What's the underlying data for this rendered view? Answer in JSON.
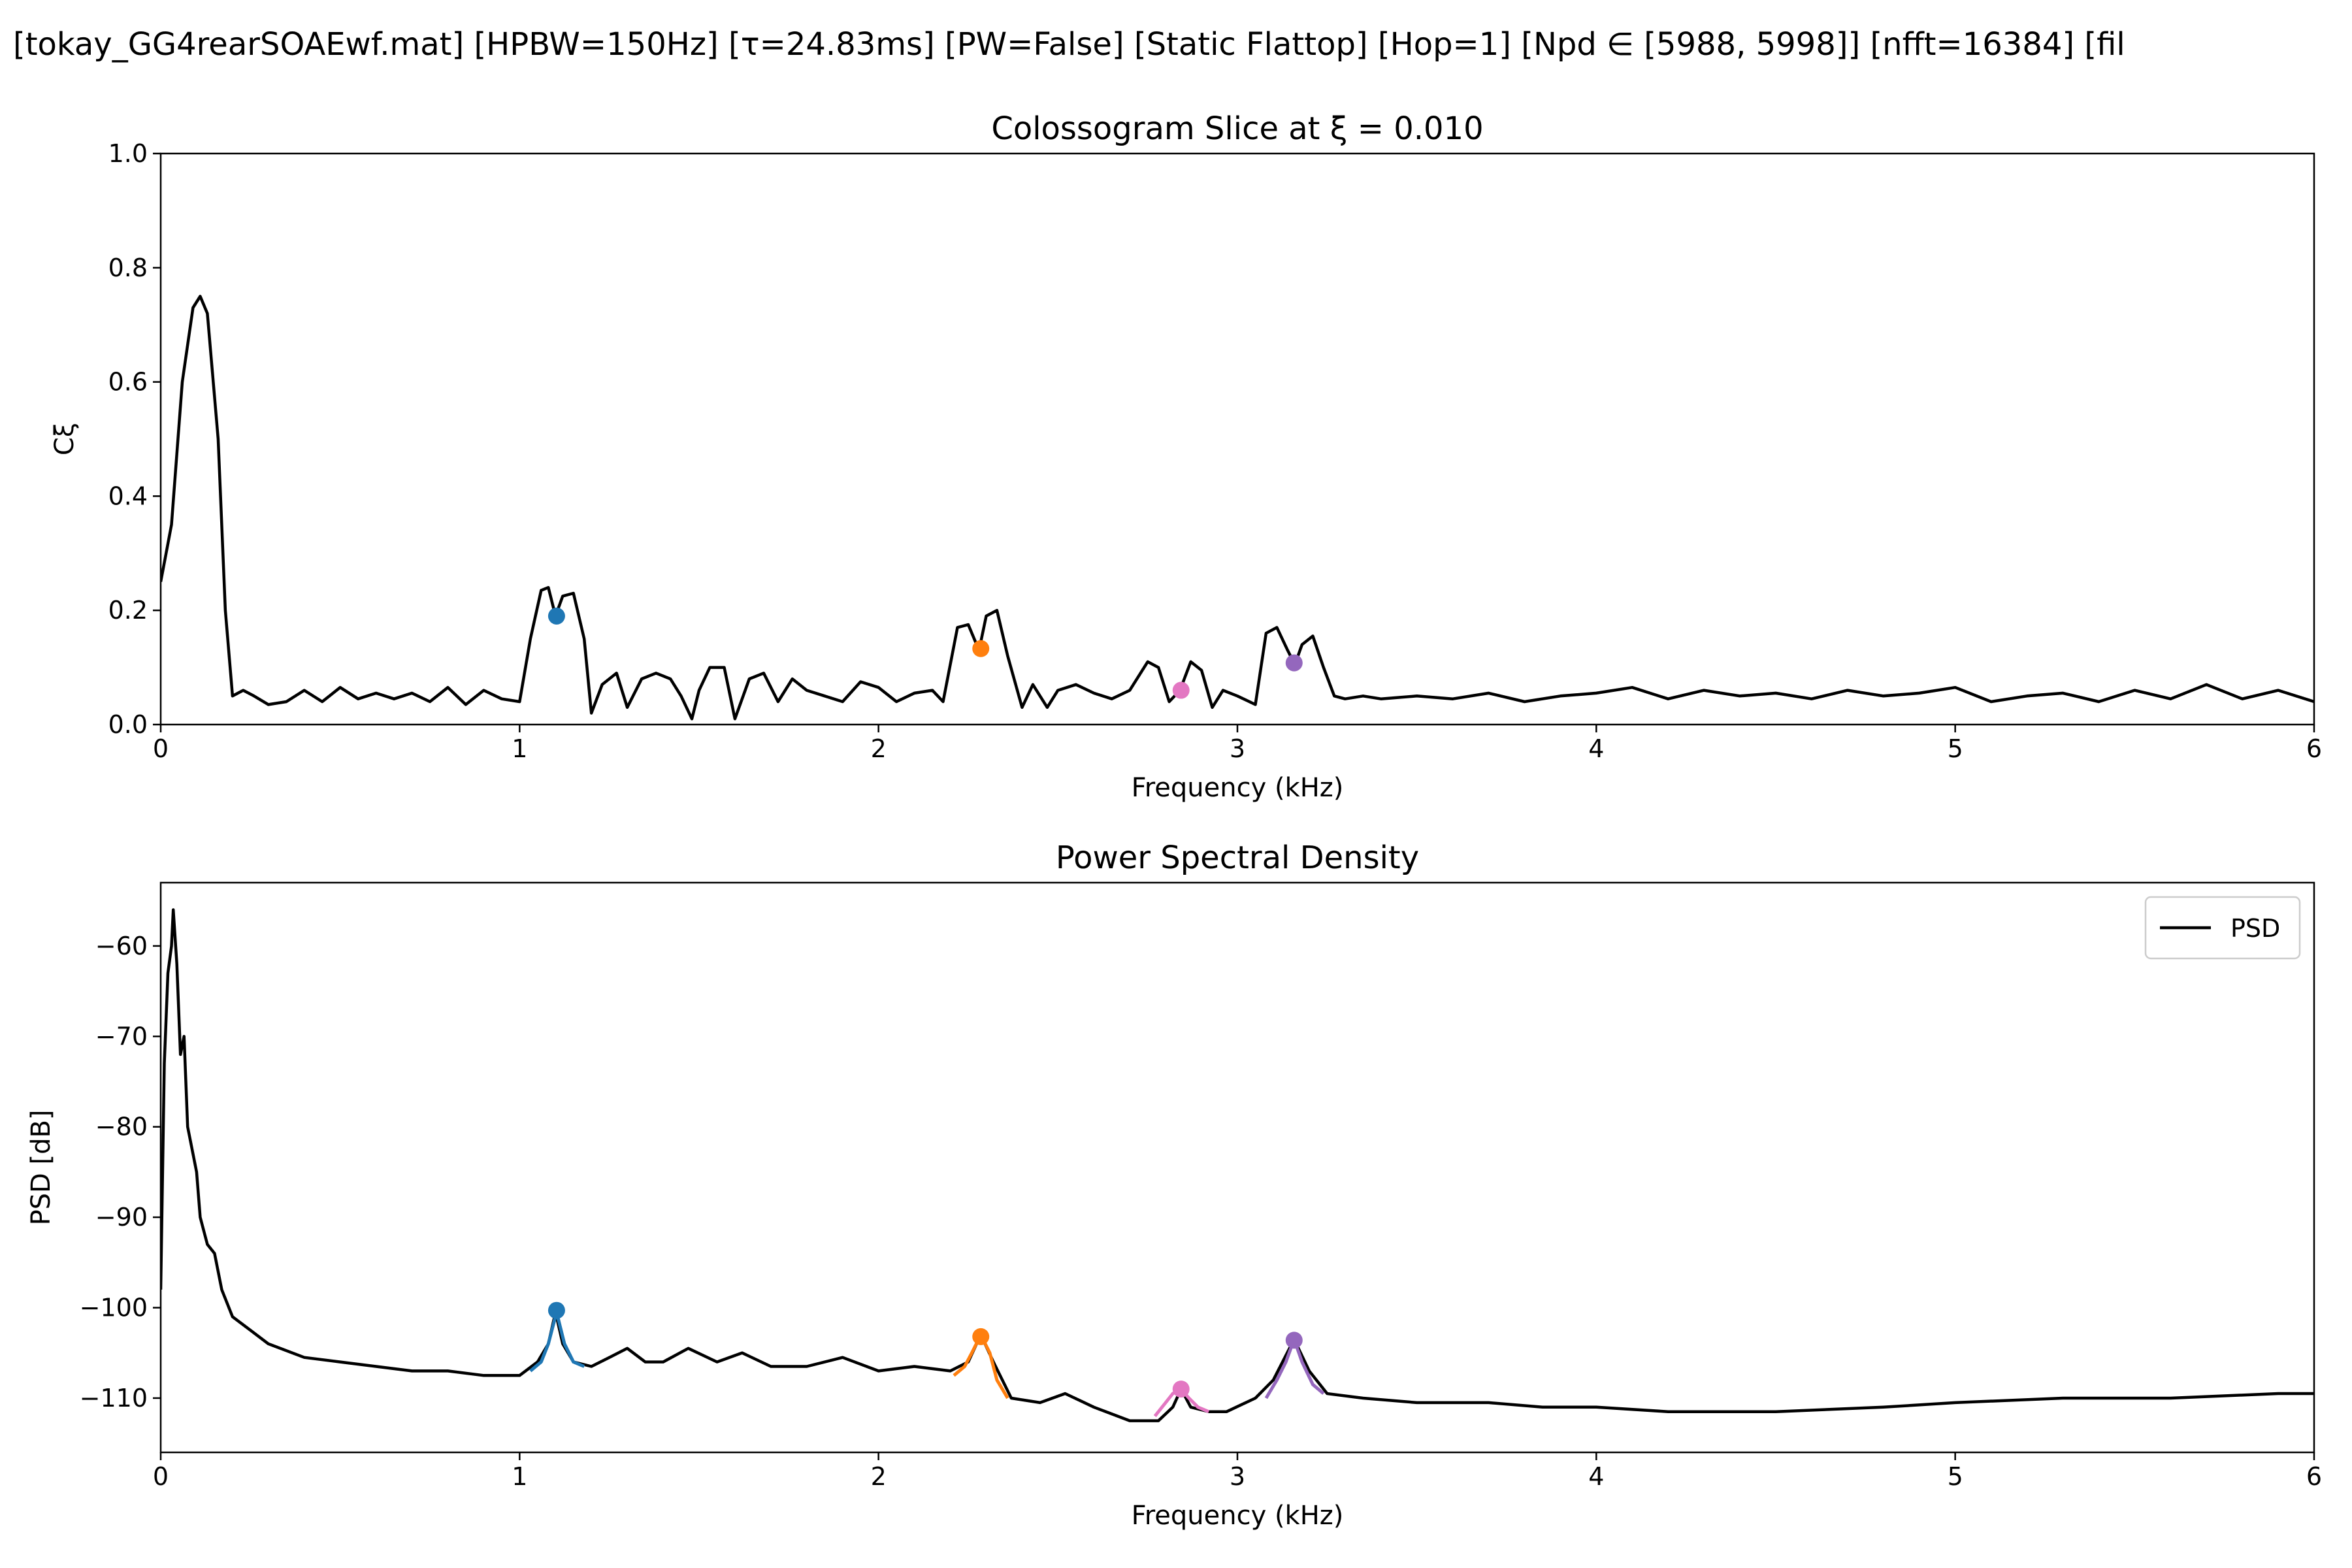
{
  "figure": {
    "suptitle": "[tokay_GG4rearSOAEwf.mat]   [HPBW=150Hz]   [τ=24.83ms]   [PW=False]   [Static Flattop]   [Hop=1]   [Npd ∈ [5988, 5998]]   [nfft=16384]   [fil"
  },
  "chart_data": [
    {
      "type": "line",
      "title": "Colossogram Slice at ξ = 0.010",
      "xlabel": "Frequency (kHz)",
      "ylabel": "Cξ",
      "xlim": [
        0,
        6
      ],
      "ylim": [
        0,
        1
      ],
      "xticks": [
        0,
        1,
        2,
        3,
        4,
        5,
        6
      ],
      "xtick_labels": [
        "0",
        "1",
        "2",
        "3",
        "4",
        "5",
        "6"
      ],
      "yticks": [
        0,
        0.2,
        0.4,
        0.6,
        0.8,
        1.0
      ],
      "ytick_labels": [
        "0.0",
        "0.2",
        "0.4",
        "0.6",
        "0.8",
        "1.0"
      ],
      "grid": false,
      "series": [
        {
          "color": "#000000",
          "x": [
            0,
            0.03,
            0.06,
            0.09,
            0.11,
            0.13,
            0.16,
            0.18,
            0.2,
            0.23,
            0.26,
            0.3,
            0.35,
            0.4,
            0.45,
            0.5,
            0.55,
            0.6,
            0.65,
            0.7,
            0.75,
            0.8,
            0.85,
            0.9,
            0.95,
            1.0,
            1.03,
            1.06,
            1.08,
            1.1,
            1.12,
            1.15,
            1.18,
            1.2,
            1.23,
            1.27,
            1.3,
            1.34,
            1.38,
            1.42,
            1.45,
            1.48,
            1.5,
            1.53,
            1.57,
            1.6,
            1.64,
            1.68,
            1.72,
            1.76,
            1.8,
            1.85,
            1.9,
            1.95,
            2.0,
            2.05,
            2.1,
            2.15,
            2.18,
            2.22,
            2.25,
            2.28,
            2.3,
            2.33,
            2.36,
            2.4,
            2.43,
            2.47,
            2.5,
            2.55,
            2.6,
            2.65,
            2.7,
            2.75,
            2.78,
            2.81,
            2.84,
            2.87,
            2.9,
            2.93,
            2.96,
            3.0,
            3.05,
            3.08,
            3.11,
            3.14,
            3.16,
            3.18,
            3.21,
            3.24,
            3.27,
            3.3,
            3.35,
            3.4,
            3.5,
            3.6,
            3.7,
            3.8,
            3.9,
            4.0,
            4.1,
            4.2,
            4.3,
            4.4,
            4.5,
            4.6,
            4.7,
            4.8,
            4.9,
            5.0,
            5.1,
            5.2,
            5.3,
            5.4,
            5.5,
            5.6,
            5.7,
            5.8,
            5.9,
            6.0
          ],
          "y": [
            0.25,
            0.35,
            0.6,
            0.73,
            0.75,
            0.72,
            0.5,
            0.2,
            0.05,
            0.06,
            0.05,
            0.035,
            0.04,
            0.06,
            0.04,
            0.065,
            0.045,
            0.055,
            0.045,
            0.055,
            0.04,
            0.065,
            0.035,
            0.06,
            0.045,
            0.04,
            0.15,
            0.235,
            0.24,
            0.19,
            0.225,
            0.23,
            0.15,
            0.02,
            0.07,
            0.09,
            0.03,
            0.08,
            0.09,
            0.08,
            0.05,
            0.01,
            0.06,
            0.1,
            0.1,
            0.01,
            0.08,
            0.09,
            0.04,
            0.08,
            0.06,
            0.05,
            0.04,
            0.075,
            0.065,
            0.04,
            0.055,
            0.06,
            0.04,
            0.17,
            0.175,
            0.13,
            0.19,
            0.2,
            0.12,
            0.03,
            0.07,
            0.03,
            0.06,
            0.07,
            0.055,
            0.045,
            0.06,
            0.11,
            0.1,
            0.04,
            0.06,
            0.11,
            0.095,
            0.03,
            0.06,
            0.05,
            0.035,
            0.16,
            0.17,
            0.13,
            0.105,
            0.14,
            0.155,
            0.1,
            0.05,
            0.045,
            0.05,
            0.045,
            0.05,
            0.045,
            0.055,
            0.04,
            0.05,
            0.055,
            0.065,
            0.045,
            0.06,
            0.05,
            0.055,
            0.045,
            0.06,
            0.05,
            0.055,
            0.065,
            0.04,
            0.05,
            0.055,
            0.04,
            0.06,
            0.045,
            0.07,
            0.045,
            0.06,
            0.04
          ]
        }
      ],
      "markers": [
        {
          "x": 1.103,
          "y": 0.19,
          "color": "#1f77b4"
        },
        {
          "x": 2.285,
          "y": 0.133,
          "color": "#ff7f0e"
        },
        {
          "x": 2.843,
          "y": 0.06,
          "color": "#e377c2"
        },
        {
          "x": 3.158,
          "y": 0.108,
          "color": "#9467bd"
        }
      ]
    },
    {
      "type": "line",
      "title": "Power Spectral Density",
      "xlabel": "Frequency (kHz)",
      "ylabel": "PSD [dB]",
      "xlim": [
        0,
        6
      ],
      "ylim": [
        -116,
        -53
      ],
      "xticks": [
        0,
        1,
        2,
        3,
        4,
        5,
        6
      ],
      "xtick_labels": [
        "0",
        "1",
        "2",
        "3",
        "4",
        "5",
        "6"
      ],
      "yticks": [
        -60,
        -70,
        -80,
        -90,
        -100,
        -110
      ],
      "ytick_labels": [
        "−60",
        "−70",
        "−80",
        "−90",
        "−100",
        "−110"
      ],
      "grid": false,
      "legend": {
        "position": "top-right",
        "entries": [
          "PSD"
        ]
      },
      "series": [
        {
          "name": "PSD",
          "color": "#000000",
          "x": [
            0,
            0.01,
            0.02,
            0.03,
            0.035,
            0.045,
            0.055,
            0.065,
            0.075,
            0.085,
            0.1,
            0.11,
            0.13,
            0.15,
            0.17,
            0.2,
            0.25,
            0.3,
            0.4,
            0.5,
            0.6,
            0.7,
            0.8,
            0.9,
            1.0,
            1.05,
            1.08,
            1.1,
            1.12,
            1.15,
            1.2,
            1.25,
            1.3,
            1.35,
            1.4,
            1.47,
            1.55,
            1.62,
            1.7,
            1.8,
            1.9,
            2.0,
            2.1,
            2.2,
            2.25,
            2.285,
            2.32,
            2.37,
            2.45,
            2.52,
            2.6,
            2.7,
            2.78,
            2.82,
            2.843,
            2.87,
            2.92,
            2.97,
            3.05,
            3.1,
            3.158,
            3.2,
            3.25,
            3.35,
            3.5,
            3.7,
            3.85,
            4.0,
            4.2,
            4.5,
            4.8,
            5.0,
            5.3,
            5.6,
            5.9,
            6.0
          ],
          "y": [
            -98,
            -73,
            -63,
            -60,
            -56,
            -62,
            -72,
            -70,
            -80,
            -82,
            -85,
            -90,
            -93,
            -94,
            -98,
            -101,
            -102.5,
            -104,
            -105.5,
            -106,
            -106.5,
            -107,
            -107,
            -107.5,
            -107.5,
            -106,
            -104,
            -100.5,
            -104,
            -106,
            -106.5,
            -105.5,
            -104.5,
            -106,
            -106,
            -104.5,
            -106,
            -105,
            -106.5,
            -106.5,
            -105.5,
            -107,
            -106.5,
            -107,
            -106,
            -103,
            -106,
            -110,
            -110.5,
            -109.5,
            -111,
            -112.5,
            -112.5,
            -111,
            -109,
            -111,
            -111.5,
            -111.5,
            -110,
            -108,
            -103.5,
            -107,
            -109.5,
            -110,
            -110.5,
            -110.5,
            -111,
            -111,
            -111.5,
            -111.5,
            -111,
            -110.5,
            -110,
            -110,
            -109.5,
            -109.5
          ]
        }
      ],
      "highlight_series": [
        {
          "color": "#1f77b4",
          "x": [
            1.03,
            1.06,
            1.08,
            1.103,
            1.125,
            1.15,
            1.18
          ],
          "y": [
            -107,
            -106,
            -104,
            -100.5,
            -104,
            -106,
            -106.5
          ]
        },
        {
          "color": "#ff7f0e",
          "x": [
            2.21,
            2.24,
            2.26,
            2.285,
            2.31,
            2.33,
            2.36
          ],
          "y": [
            -107.5,
            -106.5,
            -105,
            -103,
            -105,
            -108,
            -110
          ]
        },
        {
          "color": "#e377c2",
          "x": [
            2.77,
            2.8,
            2.82,
            2.843,
            2.865,
            2.89,
            2.92
          ],
          "y": [
            -112,
            -110.5,
            -109.5,
            -109,
            -110,
            -111,
            -111.5
          ]
        },
        {
          "color": "#9467bd",
          "x": [
            3.08,
            3.11,
            3.135,
            3.158,
            3.18,
            3.21,
            3.24
          ],
          "y": [
            -110,
            -108,
            -106,
            -103.5,
            -106,
            -108.5,
            -109.5
          ]
        }
      ],
      "markers": [
        {
          "x": 1.103,
          "y": -100.3,
          "color": "#1f77b4"
        },
        {
          "x": 2.285,
          "y": -103.2,
          "color": "#ff7f0e"
        },
        {
          "x": 2.843,
          "y": -109,
          "color": "#e377c2"
        },
        {
          "x": 3.158,
          "y": -103.6,
          "color": "#9467bd"
        }
      ]
    }
  ]
}
